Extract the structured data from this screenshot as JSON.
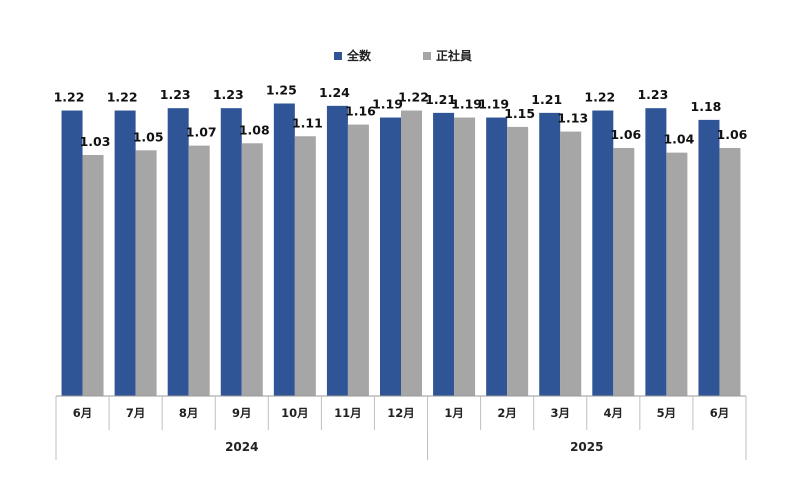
{
  "chart_data": {
    "type": "bar",
    "title": "",
    "xlabel": "",
    "ylabel": "",
    "categories": [
      "6月",
      "7月",
      "8月",
      "9月",
      "10月",
      "11月",
      "12月",
      "1月",
      "2月",
      "3月",
      "4月",
      "5月",
      "6月"
    ],
    "year_groups": [
      {
        "label": "2024",
        "start": 0,
        "end": 6
      },
      {
        "label": "2025",
        "start": 7,
        "end": 12
      }
    ],
    "series": [
      {
        "name": "全数",
        "color": "#2F5597",
        "values": [
          1.22,
          1.22,
          1.23,
          1.23,
          1.25,
          1.24,
          1.19,
          1.21,
          1.19,
          1.21,
          1.22,
          1.23,
          1.18
        ]
      },
      {
        "name": "正社員",
        "color": "#A6A6A6",
        "values": [
          1.03,
          1.05,
          1.07,
          1.08,
          1.11,
          1.16,
          1.22,
          1.19,
          1.15,
          1.13,
          1.06,
          1.04,
          1.06
        ]
      }
    ],
    "legend_position": "top-center",
    "grid": false
  }
}
